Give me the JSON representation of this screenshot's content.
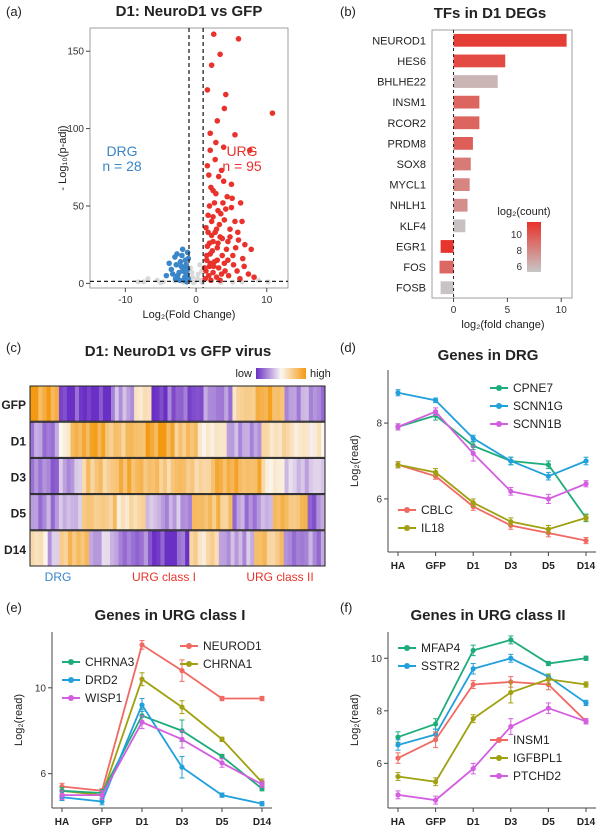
{
  "panel_labels": [
    "(a)",
    "(b)",
    "(c)",
    "(d)",
    "(e)",
    "(f)"
  ],
  "colors": {
    "red": "#e8322b",
    "blue": "#3a86c8",
    "grey": "#c7c7c7",
    "heat_low": "#6a2fc4",
    "heat_mid": "#fbf7f2",
    "heat_high": "#f39a12",
    "dpink": "#f06a63",
    "olive": "#a0a010",
    "teal": "#1ead7a",
    "sky": "#22a0dc",
    "magenta": "#d35ee0"
  },
  "chart_data": [
    {
      "id": "a",
      "type": "scatter",
      "title": "D1: NeuroD1 vs GFP",
      "xlabel": "Log₂(Fold Change)",
      "ylabel": "- Log₁₀(p-adj)",
      "xlim": [
        -15,
        13
      ],
      "ylim": [
        -3,
        165
      ],
      "xticks": [
        -10,
        0,
        10
      ],
      "yticks": [
        0,
        50,
        100,
        150
      ],
      "thresholds": {
        "x": [
          -1,
          1
        ],
        "y": 1.3
      },
      "annotations": {
        "drg_label": "DRG",
        "drg_count": "n = 28",
        "urg_label": "URG",
        "urg_count": "n = 95"
      },
      "points_red": [
        [
          2.5,
          161
        ],
        [
          3.4,
          148
        ],
        [
          6.0,
          158
        ],
        [
          2.2,
          141
        ],
        [
          10.8,
          110
        ],
        [
          1.6,
          125
        ],
        [
          4.0,
          113
        ],
        [
          3.0,
          105
        ],
        [
          5.5,
          96
        ],
        [
          2.0,
          86
        ],
        [
          7.6,
          86
        ],
        [
          2.7,
          80
        ],
        [
          1.8,
          70
        ],
        [
          3.6,
          73
        ],
        [
          5.0,
          64
        ],
        [
          2.4,
          60
        ],
        [
          4.4,
          56
        ],
        [
          6.3,
          52
        ],
        [
          1.9,
          50
        ],
        [
          3.1,
          47
        ],
        [
          2.2,
          40
        ],
        [
          4.0,
          41
        ],
        [
          5.5,
          40
        ],
        [
          2.9,
          35
        ],
        [
          1.7,
          33
        ],
        [
          3.4,
          30
        ],
        [
          4.8,
          30
        ],
        [
          2.4,
          27
        ],
        [
          6.0,
          28
        ],
        [
          1.6,
          24
        ],
        [
          3.0,
          23
        ],
        [
          4.3,
          22
        ],
        [
          2.0,
          19
        ],
        [
          3.7,
          18
        ],
        [
          5.2,
          18
        ],
        [
          1.5,
          15
        ],
        [
          2.6,
          14
        ],
        [
          4.0,
          13
        ],
        [
          1.9,
          11
        ],
        [
          3.2,
          10
        ],
        [
          6.8,
          11
        ],
        [
          1.4,
          8
        ],
        [
          2.4,
          7
        ],
        [
          3.6,
          6
        ],
        [
          1.8,
          5
        ],
        [
          2.9,
          4
        ],
        [
          4.6,
          5
        ],
        [
          1.3,
          3
        ],
        [
          2.1,
          2
        ],
        [
          3.4,
          2
        ],
        [
          5.8,
          8
        ],
        [
          7.4,
          6
        ],
        [
          8.2,
          4
        ],
        [
          2.2,
          31
        ],
        [
          5.0,
          49
        ],
        [
          2.0,
          97
        ],
        [
          4.2,
          122
        ],
        [
          6.6,
          16
        ],
        [
          7.8,
          22
        ],
        [
          3.9,
          66
        ],
        [
          1.7,
          44
        ],
        [
          2.6,
          52
        ],
        [
          3.3,
          38
        ],
        [
          4.5,
          27
        ],
        [
          5.3,
          12
        ],
        [
          6.2,
          3
        ],
        [
          2.8,
          58
        ],
        [
          1.5,
          18
        ],
        [
          4.1,
          8
        ],
        [
          3.0,
          15
        ],
        [
          2.3,
          21
        ],
        [
          5.6,
          23
        ],
        [
          1.2,
          10
        ],
        [
          2.5,
          11
        ],
        [
          3.7,
          29
        ],
        [
          4.8,
          35
        ],
        [
          6.5,
          40
        ],
        [
          1.9,
          26
        ],
        [
          2.7,
          33
        ],
        [
          3.5,
          45
        ],
        [
          4.2,
          48
        ],
        [
          5.1,
          55
        ],
        [
          2.1,
          62
        ],
        [
          3.2,
          69
        ],
        [
          1.6,
          76
        ],
        [
          2.8,
          91
        ],
        [
          3.9,
          88
        ],
        [
          1.4,
          36
        ],
        [
          2.0,
          13
        ],
        [
          3.1,
          26
        ],
        [
          4.5,
          15
        ],
        [
          5.9,
          33
        ],
        [
          6.9,
          25
        ],
        [
          2.4,
          43
        ],
        [
          3.8,
          52
        ]
      ],
      "points_blue": [
        [
          -2.0,
          18
        ],
        [
          -1.5,
          15
        ],
        [
          -2.8,
          12
        ],
        [
          -1.2,
          20
        ],
        [
          -3.5,
          9
        ],
        [
          -1.8,
          10
        ],
        [
          -2.4,
          7
        ],
        [
          -1.3,
          6
        ],
        [
          -4.2,
          5
        ],
        [
          -1.6,
          4
        ],
        [
          -2.9,
          3
        ],
        [
          -1.1,
          3
        ],
        [
          -2.2,
          14
        ],
        [
          -3.0,
          17
        ],
        [
          -1.4,
          12
        ],
        [
          -1.9,
          22
        ],
        [
          -2.6,
          5
        ],
        [
          -1.2,
          9
        ],
        [
          -3.8,
          13
        ],
        [
          -1.7,
          2
        ],
        [
          -2.3,
          2
        ],
        [
          -1.5,
          7
        ],
        [
          -2.7,
          19
        ],
        [
          -1.1,
          16
        ],
        [
          -3.3,
          6
        ],
        [
          -1.9,
          8
        ],
        [
          -2.1,
          11
        ],
        [
          -1.3,
          1
        ]
      ],
      "points_grey": [
        [
          -0.5,
          4
        ],
        [
          -0.8,
          10
        ],
        [
          0.3,
          6
        ],
        [
          0.7,
          2
        ],
        [
          -0.2,
          1
        ],
        [
          0.5,
          12
        ],
        [
          -0.6,
          7
        ],
        [
          0.2,
          3
        ],
        [
          0.8,
          8
        ],
        [
          -0.9,
          2
        ],
        [
          -5.5,
          2
        ],
        [
          -6.8,
          3
        ],
        [
          -8.2,
          1
        ],
        [
          -4.6,
          1
        ],
        [
          6.5,
          1
        ],
        [
          8.8,
          2
        ],
        [
          10.2,
          1
        ],
        [
          -3.0,
          1.5
        ],
        [
          -7.4,
          1
        ],
        [
          5.2,
          0.8
        ],
        [
          -1.8,
          0.7
        ],
        [
          0.9,
          0.5
        ],
        [
          -0.4,
          0.6
        ],
        [
          3.5,
          0.6
        ],
        [
          -5.0,
          0.4
        ]
      ]
    },
    {
      "id": "b",
      "type": "bar",
      "orientation": "horizontal",
      "title": "TFs in D1 DEGs",
      "xlabel": "log₂(fold change)",
      "xlim": [
        -2,
        11
      ],
      "xticks": [
        0,
        5,
        10
      ],
      "legend": {
        "title": "log₂(count)",
        "ticks": [
          10,
          8,
          6
        ]
      },
      "categories": [
        "NEUROD1",
        "HES6",
        "BHLHE22",
        "INSM1",
        "RCOR2",
        "PRDM8",
        "SOX8",
        "MYCL1",
        "NHLH1",
        "KLF4",
        "EGR1",
        "FOS",
        "FOSB"
      ],
      "values": [
        10.5,
        4.8,
        4.1,
        2.4,
        2.4,
        1.8,
        1.6,
        1.5,
        1.3,
        1.1,
        -1.2,
        -1.3,
        -1.2
      ],
      "count": [
        10.6,
        10.2,
        6.6,
        9.3,
        9.3,
        9.5,
        8.6,
        8.2,
        7.9,
        6.2,
        10.9,
        9.2,
        6.1
      ]
    },
    {
      "id": "c",
      "type": "heatmap",
      "title": "D1: NeuroD1 vs GFP virus",
      "legend": {
        "low": "low",
        "high": "high"
      },
      "rows": [
        "GFP",
        "D1",
        "D3",
        "D5",
        "D14"
      ],
      "column_groups": [
        {
          "label": "DRG",
          "color": "#3a86c8"
        },
        {
          "label": "URG class I",
          "color": "#e8322b"
        },
        {
          "label": "URG class II",
          "color": "#e8322b"
        }
      ],
      "segments": [
        [
          [
            0.85,
            10
          ],
          [
            -0.9,
            18
          ],
          [
            -0.4,
            8
          ],
          [
            0.2,
            6
          ],
          [
            -0.8,
            18
          ],
          [
            -0.5,
            10
          ],
          [
            0.3,
            8
          ],
          [
            0.7,
            10
          ],
          [
            -0.5,
            14
          ]
        ],
        [
          [
            -0.5,
            10
          ],
          [
            0.1,
            4
          ],
          [
            0.8,
            12
          ],
          [
            0.6,
            14
          ],
          [
            0.9,
            10
          ],
          [
            0.5,
            8
          ],
          [
            0.2,
            10
          ],
          [
            -0.4,
            12
          ],
          [
            0.3,
            10
          ],
          [
            0.1,
            12
          ]
        ],
        [
          [
            -0.6,
            10
          ],
          [
            -0.4,
            8
          ],
          [
            0.5,
            10
          ],
          [
            0.7,
            14
          ],
          [
            0.5,
            12
          ],
          [
            0.4,
            10
          ],
          [
            0.7,
            16
          ],
          [
            0.2,
            8
          ],
          [
            -0.3,
            14
          ]
        ],
        [
          [
            -0.5,
            10
          ],
          [
            -0.3,
            8
          ],
          [
            0.5,
            12
          ],
          [
            0.3,
            10
          ],
          [
            -0.4,
            16
          ],
          [
            0.6,
            14
          ],
          [
            -0.5,
            14
          ],
          [
            0.7,
            12
          ],
          [
            -0.6,
            6
          ]
        ],
        [
          [
            0.2,
            6
          ],
          [
            -0.4,
            4
          ],
          [
            0.5,
            10
          ],
          [
            -0.3,
            10
          ],
          [
            -0.6,
            10
          ],
          [
            -0.8,
            14
          ],
          [
            0.3,
            10
          ],
          [
            -0.4,
            12
          ],
          [
            0.5,
            10
          ],
          [
            -0.5,
            14
          ]
        ]
      ]
    },
    {
      "id": "d",
      "type": "line",
      "title": "Genes in DRG",
      "ylabel": "Log₂(read)",
      "categories": [
        "HA",
        "GFP",
        "D1",
        "D3",
        "D5",
        "D14"
      ],
      "ylim": [
        4.6,
        9.4
      ],
      "yticks": [
        6,
        8
      ],
      "legend_upper": [
        "CPNE7",
        "SCNN1G",
        "SCNN1B"
      ],
      "legend_lower": [
        "CBLC",
        "IL18"
      ],
      "series": [
        {
          "name": "CPNE7",
          "color": "#1ead7a",
          "values": [
            7.9,
            8.2,
            7.4,
            7.0,
            6.9,
            5.5
          ],
          "err": [
            0.08,
            0.12,
            0.1,
            0.1,
            0.1,
            0.1
          ]
        },
        {
          "name": "SCNN1G",
          "color": "#22a0dc",
          "values": [
            8.8,
            8.6,
            7.6,
            7.0,
            6.6,
            7.0
          ],
          "err": [
            0.08,
            0.06,
            0.08,
            0.1,
            0.1,
            0.1
          ]
        },
        {
          "name": "SCNN1B",
          "color": "#d35ee0",
          "values": [
            7.9,
            8.3,
            7.2,
            6.2,
            6.0,
            6.4
          ],
          "err": [
            0.08,
            0.1,
            0.2,
            0.1,
            0.12,
            0.08
          ]
        },
        {
          "name": "CBLC",
          "color": "#f06a63",
          "values": [
            6.9,
            6.6,
            5.8,
            5.3,
            5.1,
            4.9
          ],
          "err": [
            0.08,
            0.08,
            0.1,
            0.1,
            0.1,
            0.08
          ]
        },
        {
          "name": "IL18",
          "color": "#a0a010",
          "values": [
            6.9,
            6.7,
            5.9,
            5.4,
            5.2,
            5.5
          ],
          "err": [
            0.08,
            0.1,
            0.1,
            0.1,
            0.1,
            0.08
          ]
        }
      ]
    },
    {
      "id": "e",
      "type": "line",
      "title": "Genes in URG class I",
      "ylabel": "Log₂(read)",
      "categories": [
        "HA",
        "GFP",
        "D1",
        "D3",
        "D5",
        "D14"
      ],
      "ylim": [
        4.4,
        12.6
      ],
      "yticks": [
        6,
        10
      ],
      "legend_left": [
        "CHRNA3",
        "DRD2",
        "WISP1"
      ],
      "legend_right": [
        "NEUROD1",
        "CHRNA1"
      ],
      "series": [
        {
          "name": "NEUROD1",
          "color": "#f06a63",
          "values": [
            5.4,
            5.2,
            12.0,
            10.8,
            9.5,
            9.5
          ],
          "err": [
            0.15,
            0.1,
            0.2,
            0.5,
            0.1,
            0.1
          ]
        },
        {
          "name": "CHRNA1",
          "color": "#a0a010",
          "values": [
            5.2,
            5.0,
            10.4,
            9.1,
            7.6,
            5.6
          ],
          "err": [
            0.15,
            0.15,
            0.3,
            0.3,
            0.1,
            0.15
          ]
        },
        {
          "name": "CHRNA3",
          "color": "#1ead7a",
          "values": [
            5.2,
            5.1,
            8.7,
            8.0,
            6.8,
            5.3
          ],
          "err": [
            0.15,
            0.15,
            0.3,
            0.5,
            0.1,
            0.1
          ]
        },
        {
          "name": "DRD2",
          "color": "#22a0dc",
          "values": [
            4.9,
            4.7,
            9.2,
            6.3,
            5.0,
            4.6
          ],
          "err": [
            0.15,
            0.15,
            0.3,
            0.5,
            0.1,
            0.1
          ]
        },
        {
          "name": "WISP1",
          "color": "#d35ee0",
          "values": [
            5.0,
            5.0,
            8.4,
            7.6,
            6.5,
            5.5
          ],
          "err": [
            0.2,
            0.2,
            0.3,
            0.4,
            0.2,
            0.15
          ]
        }
      ]
    },
    {
      "id": "f",
      "type": "line",
      "title": "Genes in URG class II",
      "ylabel": "Log₂(read)",
      "categories": [
        "HA",
        "GFP",
        "D1",
        "D3",
        "D5",
        "D14"
      ],
      "ylim": [
        4.3,
        11.0
      ],
      "yticks": [
        6,
        8,
        10
      ],
      "legend_upper": [
        "MFAP4",
        "SSTR2"
      ],
      "legend_lower": [
        "INSM1",
        "IGFBPL1",
        "PTCHD2"
      ],
      "series": [
        {
          "name": "MFAP4",
          "color": "#1ead7a",
          "values": [
            7.0,
            7.5,
            10.3,
            10.7,
            9.8,
            10.0
          ],
          "err": [
            0.2,
            0.2,
            0.2,
            0.15,
            0.08,
            0.08
          ]
        },
        {
          "name": "SSTR2",
          "color": "#22a0dc",
          "values": [
            6.7,
            7.1,
            9.6,
            10.0,
            9.3,
            8.3
          ],
          "err": [
            0.2,
            0.2,
            0.2,
            0.15,
            0.1,
            0.1
          ]
        },
        {
          "name": "INSM1",
          "color": "#f06a63",
          "values": [
            6.2,
            6.9,
            9.0,
            9.1,
            9.0,
            7.6
          ],
          "err": [
            0.2,
            0.3,
            0.15,
            0.2,
            0.2,
            0.1
          ]
        },
        {
          "name": "IGFBPL1",
          "color": "#a0a010",
          "values": [
            5.5,
            5.3,
            7.7,
            8.7,
            9.2,
            9.0
          ],
          "err": [
            0.15,
            0.15,
            0.15,
            0.4,
            0.2,
            0.1
          ]
        },
        {
          "name": "PTCHD2",
          "color": "#d35ee0",
          "values": [
            4.8,
            4.6,
            5.8,
            7.4,
            8.1,
            7.6
          ],
          "err": [
            0.15,
            0.15,
            0.2,
            0.3,
            0.2,
            0.1
          ]
        }
      ]
    }
  ]
}
